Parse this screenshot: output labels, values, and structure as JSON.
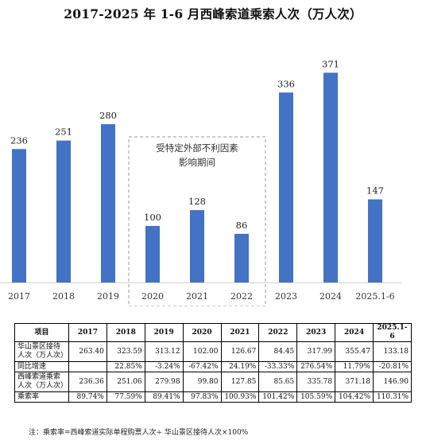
{
  "title": "2017-2025 年 1-6 月西峰索道乘索人次（万人次）",
  "chart_data": {
    "type": "bar",
    "categories": [
      "2017",
      "2018",
      "2019",
      "2020",
      "2021",
      "2022",
      "2023",
      "2024",
      "2025.1-6"
    ],
    "values": [
      236,
      251,
      280,
      100,
      128,
      86,
      336,
      371,
      147
    ],
    "ylim": [
      0,
      380
    ],
    "bar_color": "#4472C4",
    "grid": false,
    "annotation": {
      "lines": [
        "受特定外部不利因素",
        "影响期间"
      ],
      "covers": [
        "2020",
        "2021",
        "2022"
      ]
    }
  },
  "table": {
    "headers": [
      "项目",
      "2017",
      "2018",
      "2019",
      "2020",
      "2021",
      "2022",
      "2023",
      "2024",
      "2025.1-6"
    ],
    "rows": [
      {
        "label": "华山景区接待人次（万人次）",
        "cells": [
          "263.40",
          "323.59",
          "313.12",
          "102.00",
          "126.67",
          "84.45",
          "317.99",
          "355.47",
          "133.18"
        ]
      },
      {
        "label": "同比增速",
        "cells": [
          "",
          "22.85%",
          "-3.24%",
          "-67.42%",
          "24.19%",
          "-33.33%",
          "276.54%",
          "11.79%",
          "-20.81%"
        ]
      },
      {
        "label": "西峰索道乘索人次（万人次）",
        "cells": [
          "236.36",
          "251.06",
          "279.98",
          "99.80",
          "127.85",
          "85.65",
          "335.78",
          "371.18",
          "146.90"
        ]
      },
      {
        "label": "乘索率",
        "cells": [
          "89.74%",
          "77.59%",
          "89.41%",
          "97.83%",
          "100.93%",
          "101.42%",
          "105.59%",
          "104.42%",
          "110.31%"
        ]
      }
    ]
  },
  "note": "注：乘索率=西峰索道实际单程购票人次÷ 华山景区接待人次×100%"
}
